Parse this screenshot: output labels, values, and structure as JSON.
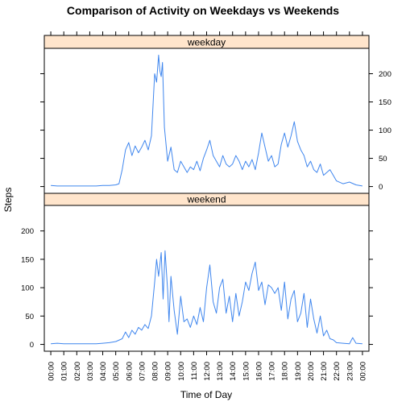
{
  "chart_data": {
    "type": "line",
    "title": "Comparison of Activity on Weekdays vs Weekends",
    "xlabel": "Time of Day",
    "ylabel": "Steps",
    "xlim": [
      -0.5,
      24.5
    ],
    "ylim": [
      -12,
      245
    ],
    "x_tick_labels": [
      "00:00",
      "01:00",
      "02:00",
      "03:00",
      "04:00",
      "05:00",
      "06:00",
      "07:00",
      "08:00",
      "09:00",
      "10:00",
      "11:00",
      "12:00",
      "13:00",
      "14:00",
      "15:00",
      "16:00",
      "17:00",
      "18:00",
      "19:00",
      "20:00",
      "21:00",
      "22:00",
      "23:00",
      "00:00"
    ],
    "y_ticks": [
      0,
      50,
      100,
      150,
      200
    ],
    "series_color": "#3f86ee",
    "strip_color": "#ffe5cc",
    "panels": [
      {
        "name": "weekday",
        "y_axis_side": "right",
        "x": [
          0,
          0.5,
          1,
          1.5,
          2,
          2.5,
          3,
          3.5,
          4,
          4.5,
          5,
          5.25,
          5.5,
          5.75,
          6,
          6.25,
          6.5,
          6.75,
          7,
          7.25,
          7.5,
          7.75,
          8,
          8.15,
          8.3,
          8.4,
          8.5,
          8.6,
          8.75,
          9,
          9.25,
          9.5,
          9.75,
          10,
          10.25,
          10.5,
          10.75,
          11,
          11.25,
          11.5,
          11.75,
          12,
          12.25,
          12.5,
          12.75,
          13,
          13.25,
          13.5,
          13.75,
          14,
          14.25,
          14.5,
          14.75,
          15,
          15.25,
          15.5,
          15.75,
          16,
          16.25,
          16.5,
          16.75,
          17,
          17.25,
          17.5,
          17.75,
          18,
          18.25,
          18.5,
          18.75,
          19,
          19.25,
          19.5,
          19.75,
          20,
          20.25,
          20.5,
          20.75,
          21,
          21.25,
          21.5,
          21.75,
          22,
          22.5,
          23,
          23.5,
          24
        ],
        "y": [
          2,
          1,
          1,
          1,
          1,
          1,
          1,
          1,
          2,
          2,
          3,
          5,
          30,
          65,
          78,
          55,
          72,
          60,
          70,
          82,
          65,
          90,
          200,
          185,
          233,
          205,
          195,
          220,
          105,
          45,
          70,
          30,
          25,
          45,
          35,
          25,
          35,
          30,
          45,
          28,
          50,
          65,
          82,
          55,
          45,
          35,
          55,
          40,
          35,
          40,
          55,
          45,
          30,
          45,
          35,
          48,
          30,
          60,
          95,
          70,
          45,
          55,
          35,
          40,
          75,
          95,
          70,
          90,
          115,
          80,
          65,
          55,
          35,
          45,
          30,
          25,
          40,
          20,
          25,
          30,
          20,
          10,
          5,
          8,
          3,
          1
        ]
      },
      {
        "name": "weekend",
        "y_axis_side": "left",
        "x": [
          0,
          0.5,
          1,
          1.5,
          2,
          2.5,
          3,
          3.5,
          4,
          4.5,
          5,
          5.5,
          5.75,
          6,
          6.25,
          6.5,
          6.75,
          7,
          7.25,
          7.5,
          7.75,
          8,
          8.15,
          8.3,
          8.5,
          8.65,
          8.8,
          9,
          9.1,
          9.25,
          9.5,
          9.75,
          10,
          10.25,
          10.5,
          10.75,
          11,
          11.25,
          11.5,
          11.75,
          12,
          12.25,
          12.5,
          12.75,
          13,
          13.25,
          13.5,
          13.75,
          14,
          14.25,
          14.5,
          14.75,
          15,
          15.25,
          15.5,
          15.75,
          16,
          16.25,
          16.5,
          16.75,
          17,
          17.25,
          17.5,
          17.75,
          18,
          18.25,
          18.5,
          18.75,
          19,
          19.25,
          19.5,
          19.75,
          20,
          20.25,
          20.5,
          20.75,
          21,
          21.25,
          21.5,
          21.75,
          22,
          22.5,
          23,
          23.25,
          23.5,
          24
        ],
        "y": [
          1,
          2,
          1,
          1,
          1,
          1,
          1,
          1,
          2,
          3,
          5,
          10,
          22,
          12,
          25,
          18,
          30,
          25,
          35,
          28,
          50,
          110,
          150,
          120,
          162,
          80,
          165,
          95,
          40,
          120,
          60,
          18,
          85,
          40,
          45,
          30,
          50,
          35,
          65,
          40,
          100,
          140,
          75,
          55,
          100,
          115,
          55,
          85,
          40,
          90,
          50,
          75,
          110,
          95,
          125,
          145,
          95,
          110,
          70,
          105,
          100,
          90,
          100,
          60,
          110,
          45,
          80,
          95,
          40,
          55,
          90,
          30,
          80,
          45,
          20,
          50,
          15,
          25,
          10,
          8,
          3,
          2,
          1,
          12,
          2,
          1
        ]
      }
    ]
  }
}
